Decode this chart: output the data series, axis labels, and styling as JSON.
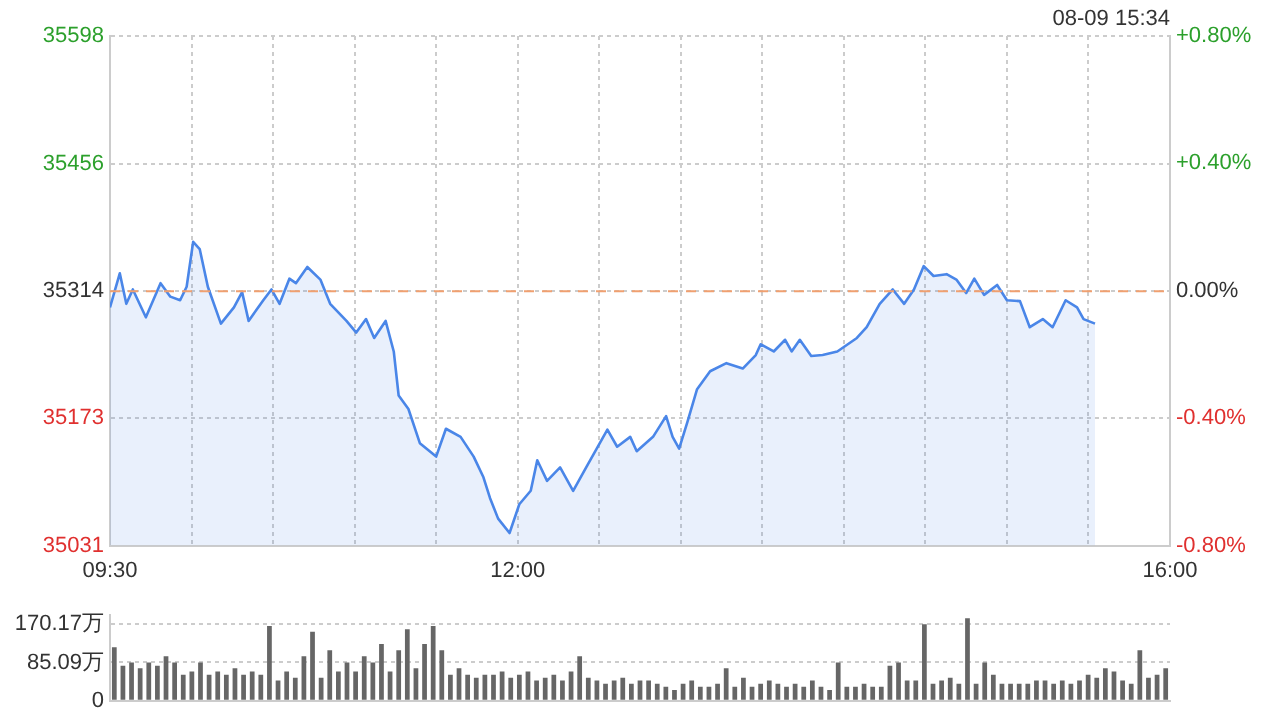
{
  "chart_data": [
    {
      "type": "area",
      "annotations": [
        "08-09 15:34"
      ],
      "series": [
        {
          "color": "#4a86e8",
          "x": [
            9.5,
            9.56,
            9.6,
            9.64,
            9.72,
            9.81,
            9.87,
            9.93,
            9.97,
            10.01,
            10.05,
            10.1,
            10.18,
            10.26,
            10.31,
            10.35,
            10.44,
            10.49,
            10.54,
            10.6,
            10.64,
            10.71,
            10.79,
            10.85,
            10.95,
            11.01,
            11.07,
            11.12,
            11.19,
            11.24,
            11.27,
            11.33,
            11.4,
            11.5,
            11.56,
            11.65,
            11.73,
            11.79,
            11.83,
            11.88,
            11.95,
            12.01,
            12.08,
            12.12,
            12.18,
            12.26,
            12.34,
            12.42,
            12.55,
            12.61,
            12.69,
            12.73,
            12.83,
            12.91,
            12.95,
            12.99,
            13.04,
            13.1,
            13.18,
            13.28,
            13.38,
            13.46,
            13.49,
            13.57,
            13.64,
            13.68,
            13.73,
            13.8,
            13.87,
            13.96,
            14.08,
            14.14,
            14.22,
            14.3,
            14.37,
            14.43,
            14.49,
            14.55,
            14.63,
            14.69,
            14.75,
            14.8,
            14.86,
            14.94,
            15.0,
            15.08,
            15.14,
            15.22,
            15.28,
            15.36,
            15.43,
            15.47,
            15.54
          ],
          "values": [
            35296,
            35334,
            35300,
            35316,
            35285,
            35323,
            35308,
            35304,
            35319,
            35369,
            35361,
            35319,
            35278,
            35296,
            35313,
            35281,
            35304,
            35316,
            35300,
            35328,
            35323,
            35341,
            35327,
            35300,
            35281,
            35268,
            35283,
            35262,
            35281,
            35247,
            35198,
            35183,
            35145,
            35130,
            35161,
            35152,
            35130,
            35107,
            35084,
            35061,
            35045,
            35077,
            35092,
            35126,
            35103,
            35118,
            35092,
            35118,
            35160,
            35141,
            35152,
            35136,
            35152,
            35175,
            35152,
            35139,
            35168,
            35205,
            35225,
            35234,
            35228,
            35243,
            35255,
            35247,
            35260,
            35247,
            35260,
            35242,
            35243,
            35247,
            35262,
            35274,
            35300,
            35316,
            35300,
            35316,
            35342,
            35331,
            35333,
            35327,
            35312,
            35328,
            35310,
            35321,
            35304,
            35303,
            35274,
            35283,
            35274,
            35304,
            35296,
            35283,
            35278
          ]
        }
      ],
      "xlim": [
        9.5,
        16
      ],
      "xticks": [
        {
          "value": 9.5,
          "label": "09:30"
        },
        {
          "value": 10,
          "label": null
        },
        {
          "value": 10.5,
          "label": null
        },
        {
          "value": 11,
          "label": null
        },
        {
          "value": 11.5,
          "label": null
        },
        {
          "value": 12,
          "label": "12:00"
        },
        {
          "value": 12.5,
          "label": null
        },
        {
          "value": 13,
          "label": null
        },
        {
          "value": 13.5,
          "label": null
        },
        {
          "value": 14,
          "label": null
        },
        {
          "value": 14.5,
          "label": null
        },
        {
          "value": 15,
          "label": null
        },
        {
          "value": 15.5,
          "label": null
        },
        {
          "value": 16,
          "label": "16:00"
        }
      ],
      "ylim": [
        35031,
        35598
      ],
      "yticks": [
        35031,
        35173,
        35314,
        35456,
        35598
      ],
      "y2lim": [
        -0.8,
        0.8
      ],
      "y2ticks": [
        {
          "value": -0.8,
          "label": "-0.80%"
        },
        {
          "value": -0.4,
          "label": "-0.40%"
        },
        {
          "value": 0,
          "label": "0.00%"
        },
        {
          "value": 0.4,
          "label": "+0.40%"
        },
        {
          "value": 0.8,
          "label": "+0.80%"
        }
      ],
      "ref_lines": [
        {
          "axis": "y",
          "value": 35314,
          "color": "#f0a070",
          "line_style": "dashed"
        }
      ],
      "grid": true,
      "marker": "none",
      "line_style": "solid",
      "legend": false
    },
    {
      "type": "bar",
      "categories": [
        null,
        null,
        null,
        null,
        null,
        null,
        null,
        null,
        null,
        null,
        null,
        null,
        null,
        null,
        null,
        null,
        null,
        null,
        null,
        null,
        null,
        null,
        null,
        null,
        null,
        null,
        null,
        null,
        null,
        null,
        null,
        null,
        null,
        null,
        null,
        null,
        null,
        null,
        null,
        null,
        null,
        null,
        null,
        null,
        null,
        null,
        null,
        null,
        null,
        null,
        null,
        null,
        null,
        null,
        null,
        null,
        null,
        null,
        null,
        null,
        null,
        null,
        null,
        null,
        null,
        null,
        null,
        null,
        null,
        null,
        null,
        null,
        null,
        null,
        null,
        null,
        null,
        null,
        null,
        null,
        null,
        null,
        null,
        null,
        null,
        null,
        null,
        null,
        null,
        null,
        null,
        null,
        null,
        null,
        null,
        null,
        null,
        null,
        null,
        null,
        null,
        null,
        null,
        null,
        null,
        null,
        null,
        null,
        null,
        null,
        null,
        null,
        null,
        null,
        null,
        null,
        null,
        null,
        null,
        null,
        null,
        null,
        null
      ],
      "values": [
        119,
        78,
        85,
        72,
        85,
        78,
        99,
        85,
        58,
        65,
        85,
        58,
        65,
        58,
        72,
        58,
        65,
        58,
        166,
        45,
        65,
        51,
        99,
        153,
        51,
        112,
        65,
        85,
        65,
        99,
        85,
        126,
        65,
        112,
        159,
        72,
        126,
        166,
        112,
        58,
        72,
        58,
        51,
        58,
        58,
        65,
        51,
        58,
        65,
        45,
        51,
        58,
        45,
        65,
        99,
        51,
        45,
        38,
        45,
        51,
        38,
        45,
        45,
        38,
        31,
        24,
        38,
        45,
        31,
        31,
        38,
        72,
        31,
        51,
        31,
        38,
        45,
        38,
        31,
        38,
        31,
        45,
        31,
        24,
        85,
        31,
        31,
        38,
        31,
        31,
        78,
        85,
        45,
        45,
        170,
        38,
        45,
        51,
        38,
        183,
        38,
        85,
        58,
        38,
        38,
        38,
        38,
        45,
        45,
        38,
        45,
        38,
        45,
        58,
        51,
        72,
        65,
        45,
        38,
        112,
        51,
        58,
        72
      ],
      "color": "#666666",
      "ylim": [
        0,
        190
      ],
      "yticks": [
        0,
        {
          "value": 85.09,
          "label": "85.09万"
        },
        {
          "value": 170.17,
          "label": "170.17万"
        }
      ],
      "grid": "y",
      "tick_labels": "y",
      "legend": false
    }
  ]
}
